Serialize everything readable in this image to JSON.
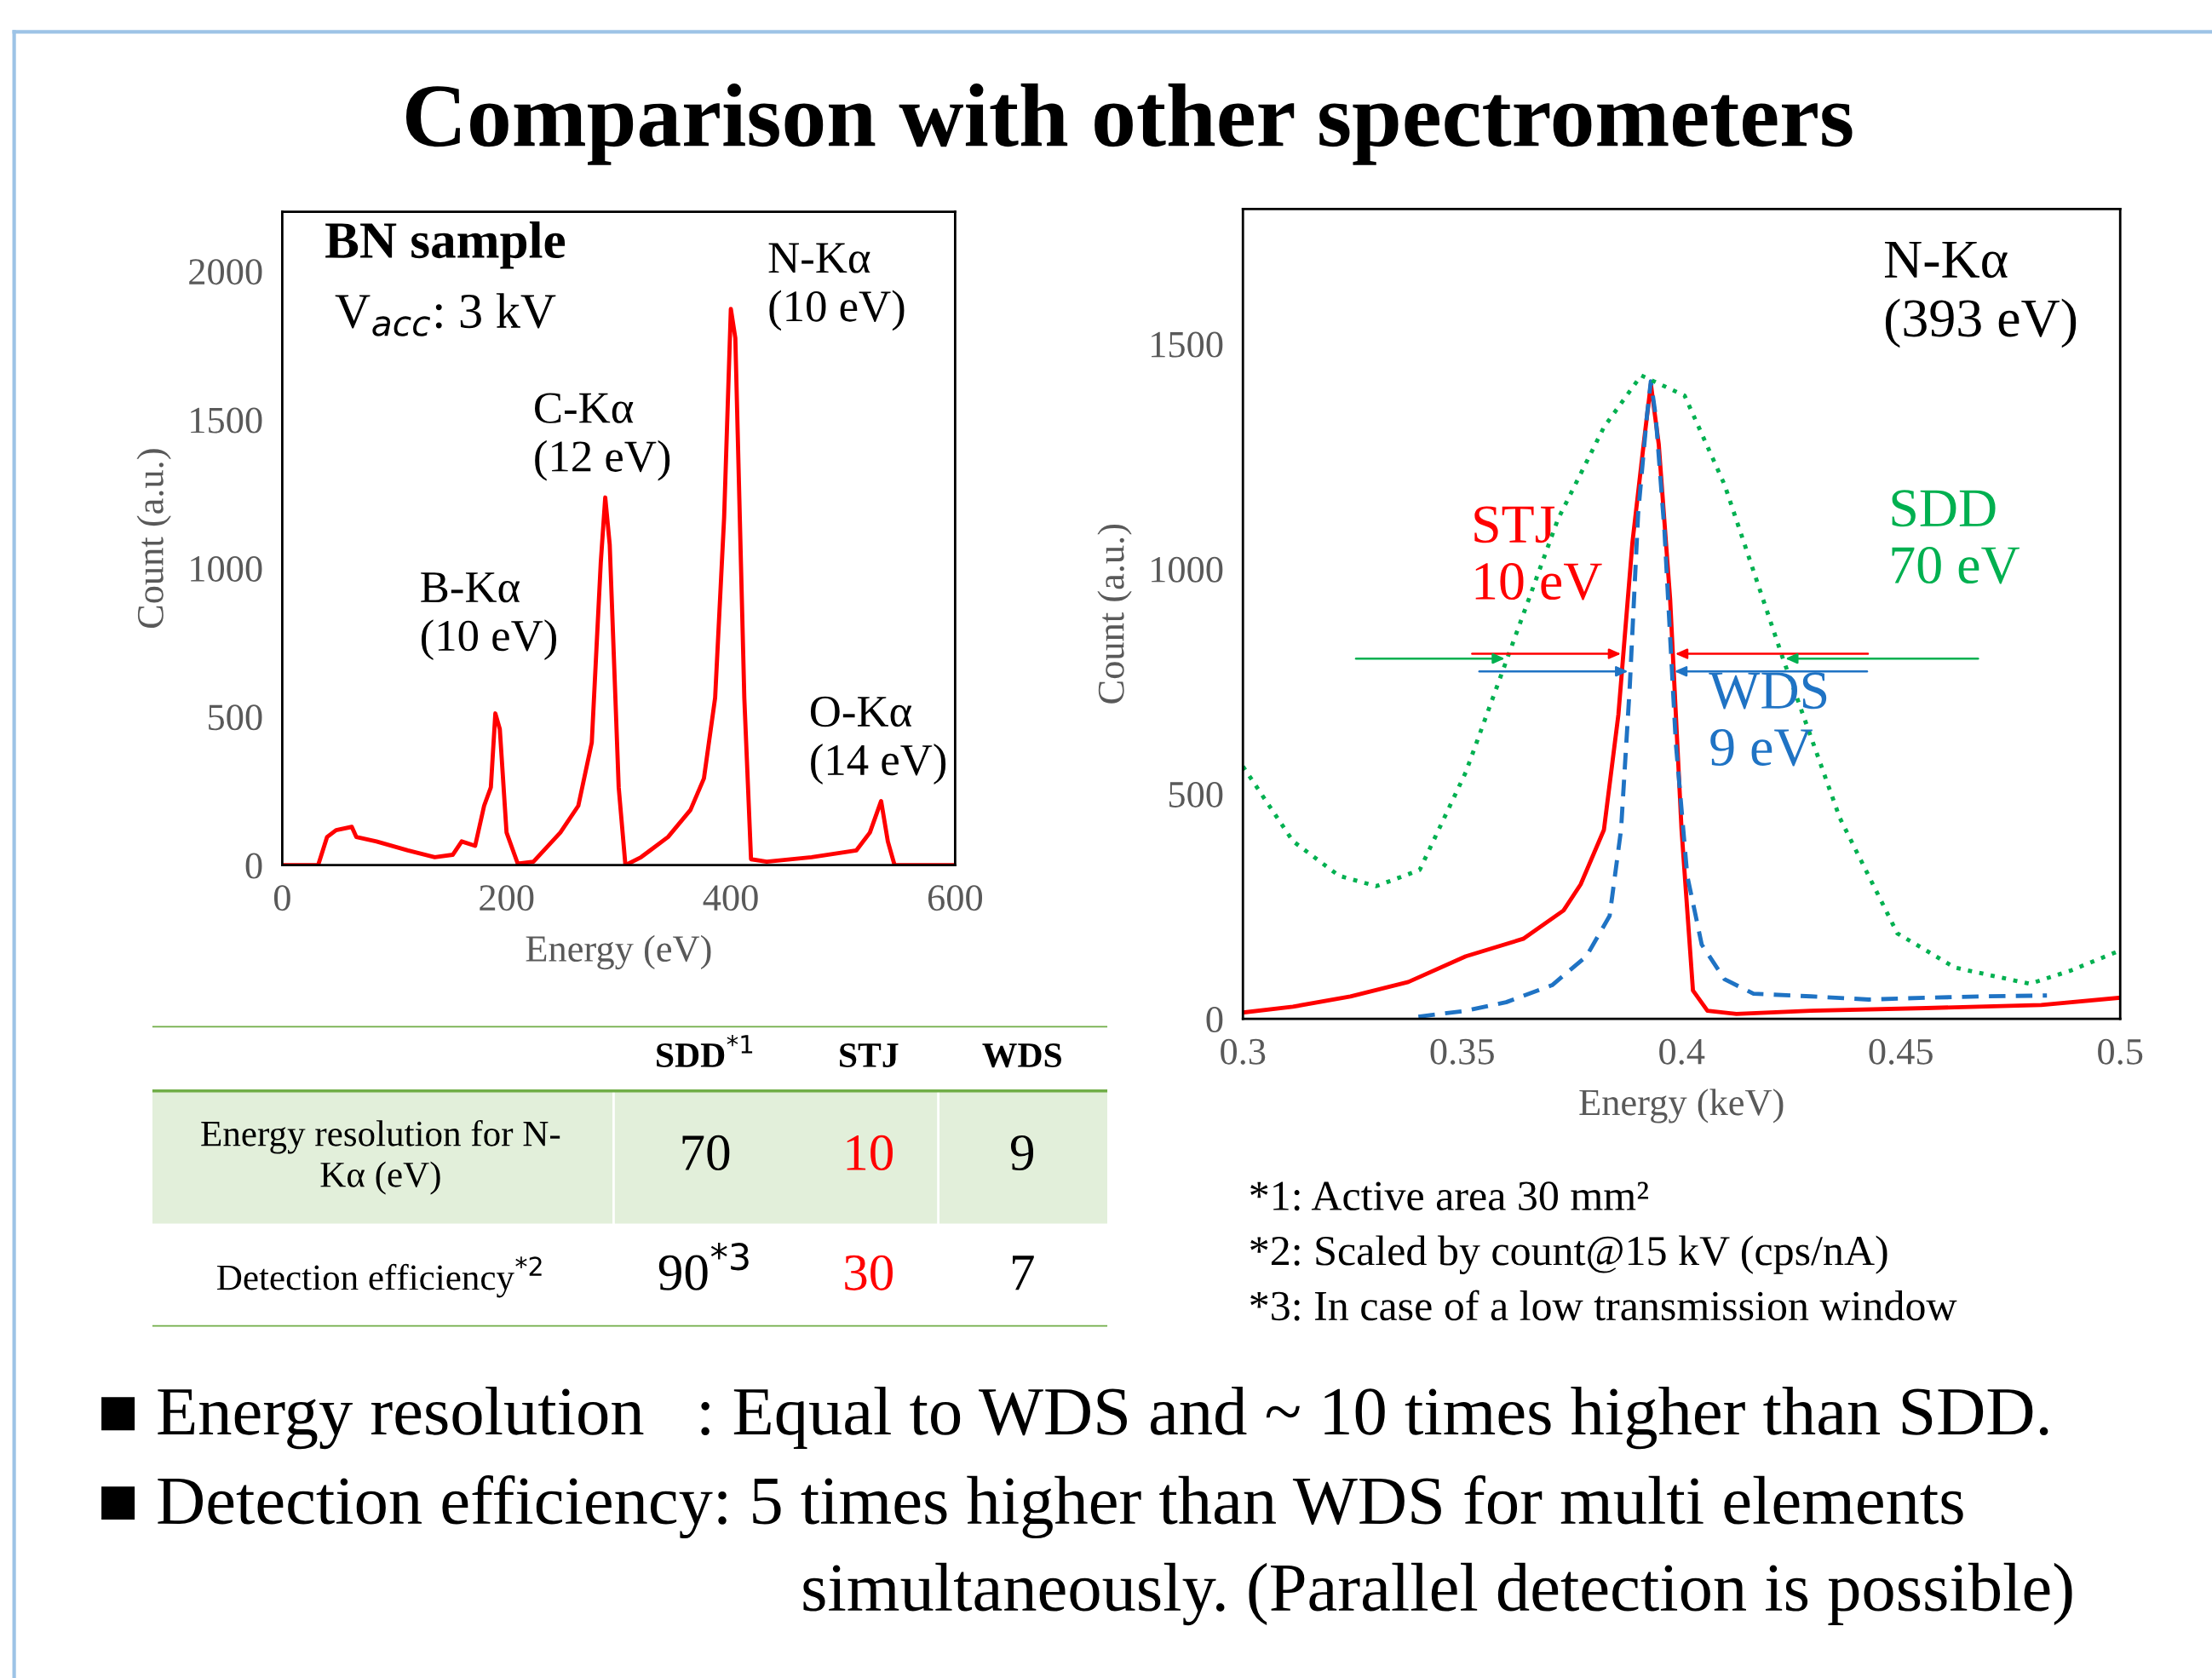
{
  "chart_data": [
    {
      "type": "other",
      "title": "Comparison with other spectrometers",
      "annotations": [
        "■ Energy resolution   : Equal to WDS and ~ 10 times higher than SDD.",
        "■ Detection efficiency: 5 times higher than WDS for multi elements\nsimultaneously. (Parallel detection is possible)"
      ]
    },
    {
      "type": "line",
      "xlabel": "Energy (eV)",
      "ylabel": "Count (a.u.)",
      "xlim": [
        0,
        600
      ],
      "xticks": [
        0,
        200,
        400,
        600
      ],
      "ylim": [
        0,
        2200
      ],
      "yticks": [
        0,
        500,
        1000,
        1500,
        2000
      ],
      "grid": false,
      "marker": "none",
      "series": [
        {
          "color": "#ff0000",
          "line_style": "solid",
          "x": [
            0,
            32,
            40,
            48,
            62,
            66,
            84,
            112,
            136,
            152,
            160,
            172,
            180,
            186,
            190,
            194,
            200,
            210,
            224,
            248,
            264,
            276,
            284,
            288,
            292,
            300,
            306,
            320,
            344,
            364,
            376,
            386,
            394,
            400,
            404,
            412,
            418,
            432,
            472,
            512,
            524,
            534,
            540,
            546,
            572,
            600
          ],
          "values": [
            0,
            0,
            95,
            118,
            129,
            95,
            80,
            50,
            27,
            35,
            80,
            65,
            200,
            262,
            511,
            458,
            110,
            5,
            12,
            110,
            200,
            413,
            1018,
            1238,
            1079,
            262,
            0,
            27,
            95,
            186,
            292,
            564,
            1170,
            1873,
            1775,
            564,
            20,
            12,
            27,
            50,
            110,
            216,
            80,
            0,
            0,
            0
          ]
        }
      ],
      "annotations": [
        "BN sample",
        "V$_{acc}$: 3 kV",
        {
          "text": "B-Kα\n(10 eV)",
          "x": 190,
          "y": 511
        },
        {
          "text": "C-Kα\n(12 eV)",
          "x": 288,
          "y": 1238
        },
        {
          "text": "N-Kα\n(10 eV)",
          "x": 400,
          "y": 1873
        },
        {
          "text": "O-Kα\n(14 eV)",
          "x": 534,
          "y": 216
        }
      ]
    },
    {
      "type": "line",
      "xlabel": "Energy (keV)",
      "ylabel": "Count (a.u.)",
      "xlim": [
        0.3,
        0.5
      ],
      "xticks": [
        0.3,
        0.35,
        0.4,
        0.45,
        0.5
      ],
      "ylim": [
        0,
        1800
      ],
      "yticks": [
        0,
        500,
        1000,
        1500
      ],
      "grid": false,
      "legend": "right",
      "marker": "none",
      "series": [
        {
          "name": "STJ\n10 eV",
          "color": "#ff0000",
          "line_style": "solid",
          "x": [
            0.3,
            0.3114,
            0.3245,
            0.3377,
            0.3508,
            0.3639,
            0.3731,
            0.377,
            0.3823,
            0.3856,
            0.3888,
            0.3915,
            0.393,
            0.3948,
            0.3974,
            0.4,
            0.4026,
            0.4059,
            0.4125,
            0.4295,
            0.4558,
            0.482,
            0.5
          ],
          "values": [
            14,
            27,
            50,
            82,
            139,
            178,
            241,
            299,
            420,
            676,
            1059,
            1289,
            1411,
            1277,
            932,
            420,
            63,
            18,
            11,
            18,
            24,
            31,
            47
          ]
        },
        {
          "name": "WDS\n9 eV",
          "color": "#1f73c4",
          "line_style": "dashed",
          "x": [
            0.34,
            0.3508,
            0.36,
            0.3705,
            0.3783,
            0.3836,
            0.3862,
            0.3882,
            0.3901,
            0.3921,
            0.393,
            0.3941,
            0.3961,
            0.3987,
            0.4013,
            0.4046,
            0.4098,
            0.4164,
            0.4295,
            0.4427,
            0.4558,
            0.4689,
            0.4833
          ],
          "values": [
            5,
            18,
            37,
            75,
            139,
            229,
            420,
            740,
            1123,
            1340,
            1417,
            1340,
            1085,
            612,
            318,
            165,
            88,
            56,
            50,
            43,
            47,
            50,
            52
          ]
        },
        {
          "name": "SDD\n70 eV",
          "color": "#00b050",
          "line_style": "dotted",
          "x": [
            0.3,
            0.3114,
            0.3219,
            0.3304,
            0.3403,
            0.3508,
            0.3613,
            0.3718,
            0.3823,
            0.3908,
            0.4007,
            0.4098,
            0.423,
            0.4361,
            0.4492,
            0.4623,
            0.4794,
            0.4886,
            0.5
          ],
          "values": [
            561,
            395,
            318,
            295,
            331,
            548,
            829,
            1110,
            1315,
            1430,
            1385,
            1187,
            804,
            446,
            190,
            114,
            78,
            107,
            152
          ]
        }
      ],
      "annotations": [
        "N-Kα\n(393 eV)"
      ]
    },
    {
      "type": "other",
      "categories": [
        "SDD$^{*1}$",
        "STJ",
        "WDS"
      ],
      "y_categories": [
        "Energy resolution for N-\nKα (eV)",
        "Detection efficiency$^{*2}$"
      ],
      "cell_labels": [
        [
          "70",
          "10",
          "9"
        ],
        [
          "90$^{*3}$",
          "30",
          "7"
        ]
      ],
      "colors": [
        "#000000",
        "#ff0000",
        "#000000"
      ],
      "annotations": [
        "*1: Active area 30 mm²",
        "*2: Scaled by count@15 kV (cps/nA)",
        "*3: In case of a low transmission window"
      ]
    }
  ]
}
